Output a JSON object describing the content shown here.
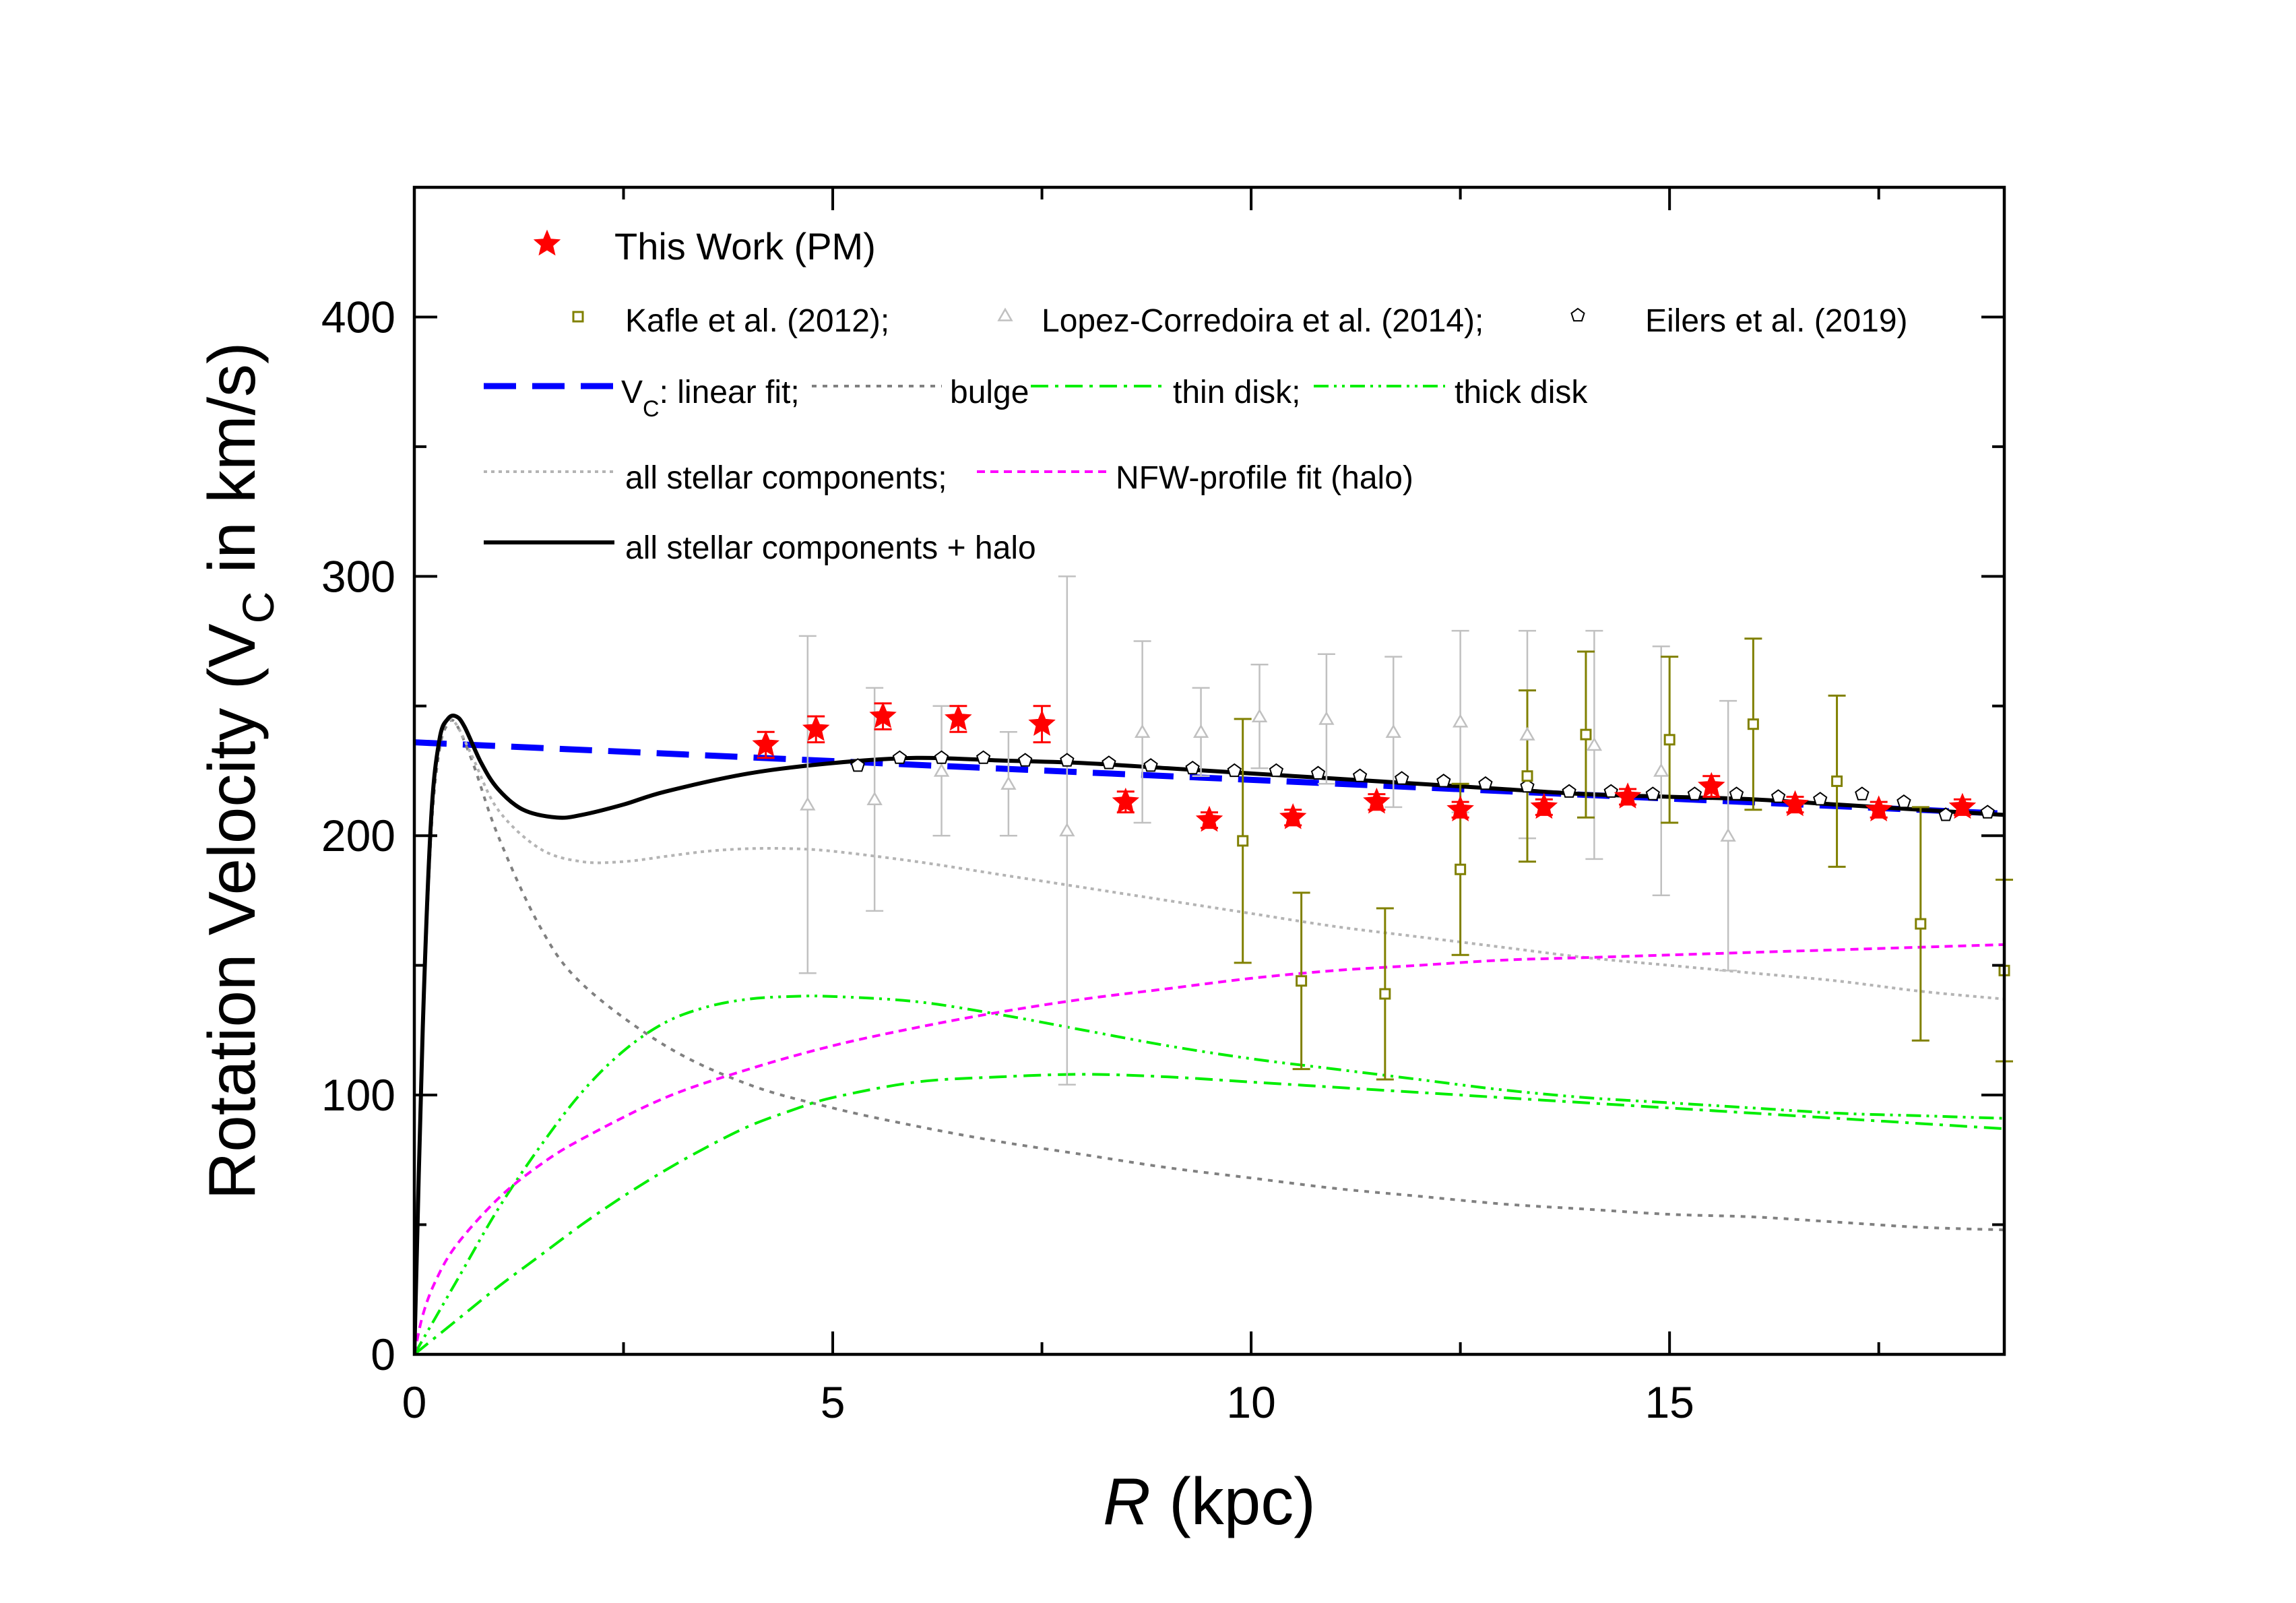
{
  "chart_data": {
    "type": "line",
    "title": "",
    "xlabel": {
      "italic": "R",
      "rest": " (kpc)"
    },
    "ylabel": {
      "pre": "Rotation Velocity (V",
      "sub": "C",
      "post": " in km/s)"
    },
    "xlim": [
      0,
      19
    ],
    "ylim": [
      0,
      450
    ],
    "xticks": [
      0,
      5,
      10,
      15
    ],
    "yticks": [
      0,
      100,
      200,
      300,
      400
    ],
    "xtick_labels": [
      "0",
      "5",
      "10",
      "15"
    ],
    "ytick_labels": [
      "0",
      "100",
      "200",
      "300",
      "400"
    ],
    "legend": {
      "placement": "top-left",
      "this_work": "This Work (PM)",
      "kafle": "Kafle et al. (2012);",
      "lopez": "Lopez-Corredoira et al. (2014);",
      "eilers": "Eilers et al. (2019)",
      "vc_pre": "V",
      "vc_sub": "C",
      "vc_post": ": linear fit;",
      "bulge": "bulge",
      "thin_disk": "thin disk;",
      "thick_disk": "thick disk",
      "all_stellar": "all stellar components;",
      "nfw": "NFW-profile fit (halo)",
      "all_plus_halo": "all stellar components + halo"
    },
    "colors": {
      "this_work": "#ff0000",
      "kafle": "#808000",
      "lopez": "#c0c0c0",
      "eilers": "#000000",
      "vc_fit": "#0000ff",
      "bulge": "#808080",
      "disk": "#00ee00",
      "all_stellar": "#b4b4b4",
      "nfw": "#ff00ff",
      "total": "#000000"
    },
    "series": [
      {
        "name": "This Work (PM)",
        "kind": "star",
        "points": [
          [
            4.2,
            235,
            5
          ],
          [
            4.8,
            241,
            5
          ],
          [
            5.6,
            246,
            5
          ],
          [
            6.5,
            245,
            5
          ],
          [
            7.5,
            243,
            7
          ],
          [
            8.5,
            213,
            4
          ],
          [
            9.5,
            206,
            3
          ],
          [
            10.5,
            207,
            3
          ],
          [
            11.5,
            213,
            3
          ],
          [
            12.5,
            210,
            3
          ],
          [
            13.5,
            211,
            3
          ],
          [
            14.5,
            215,
            3
          ],
          [
            15.5,
            219,
            4
          ],
          [
            16.5,
            212,
            3
          ],
          [
            17.5,
            210,
            3
          ],
          [
            18.5,
            211,
            3
          ]
        ]
      },
      {
        "name": "Kafle et al. (2012)",
        "kind": "square",
        "points": [
          [
            9.9,
            198,
            47
          ],
          [
            10.6,
            144,
            34
          ],
          [
            11.6,
            139,
            33
          ],
          [
            12.5,
            187,
            33
          ],
          [
            13.3,
            223,
            33
          ],
          [
            14.0,
            239,
            32
          ],
          [
            15.0,
            237,
            32
          ],
          [
            16.0,
            243,
            33
          ],
          [
            17.0,
            221,
            33
          ],
          [
            18.0,
            166,
            45
          ],
          [
            19.0,
            148,
            35
          ]
        ]
      },
      {
        "name": "Lopez-Corredoira et al. (2014)",
        "kind": "triangle",
        "points": [
          [
            4.7,
            212,
            65
          ],
          [
            5.5,
            214,
            43
          ],
          [
            6.3,
            225,
            25
          ],
          [
            7.1,
            220,
            20
          ],
          [
            7.8,
            202,
            98
          ],
          [
            8.7,
            240,
            35
          ],
          [
            9.4,
            240,
            17
          ],
          [
            10.1,
            246,
            20
          ],
          [
            10.9,
            245,
            25
          ],
          [
            11.7,
            240,
            29
          ],
          [
            12.5,
            244,
            35
          ],
          [
            13.3,
            239,
            40
          ],
          [
            14.1,
            235,
            44
          ],
          [
            14.9,
            225,
            48
          ],
          [
            15.7,
            200,
            52
          ]
        ]
      },
      {
        "name": "Eilers et al. (2019)",
        "kind": "pentagon",
        "points": [
          [
            5.3,
            227
          ],
          [
            5.8,
            230
          ],
          [
            6.3,
            230
          ],
          [
            6.8,
            230
          ],
          [
            7.3,
            229
          ],
          [
            7.8,
            229
          ],
          [
            8.3,
            228
          ],
          [
            8.8,
            227
          ],
          [
            9.3,
            226
          ],
          [
            9.8,
            225
          ],
          [
            10.3,
            225
          ],
          [
            10.8,
            224
          ],
          [
            11.3,
            223
          ],
          [
            11.8,
            222
          ],
          [
            12.3,
            221
          ],
          [
            12.8,
            220
          ],
          [
            13.3,
            219
          ],
          [
            13.8,
            217
          ],
          [
            14.3,
            217
          ],
          [
            14.8,
            216
          ],
          [
            15.3,
            216
          ],
          [
            15.8,
            216
          ],
          [
            16.3,
            215
          ],
          [
            16.8,
            214
          ],
          [
            17.3,
            216
          ],
          [
            17.8,
            213
          ],
          [
            18.3,
            208
          ],
          [
            18.8,
            209
          ]
        ]
      },
      {
        "name": "VC: linear fit",
        "kind": "line",
        "style": "dash-blue",
        "x": [
          0,
          19
        ],
        "y": [
          236,
          208.5
        ]
      },
      {
        "name": "bulge",
        "kind": "line",
        "style": "dot-gray",
        "x": [
          0,
          0.1,
          0.2,
          0.3,
          0.4,
          0.5,
          0.7,
          1,
          1.5,
          2,
          3,
          4,
          5,
          6,
          7,
          8,
          9,
          10,
          11,
          12,
          13,
          14,
          15,
          16,
          17,
          18,
          19
        ],
        "y": [
          0,
          120,
          200,
          233,
          243,
          243,
          228,
          200,
          165,
          143,
          119,
          104,
          95,
          88,
          82,
          77,
          72,
          68,
          64,
          61,
          58,
          56,
          54,
          53,
          51,
          49,
          48
        ]
      },
      {
        "name": "thin disk",
        "kind": "line",
        "style": "dashdot-green",
        "x": [
          0,
          0.5,
          1,
          1.5,
          2,
          2.5,
          3,
          3.5,
          4,
          4.5,
          5,
          6,
          7,
          8,
          9,
          10,
          11,
          12,
          13,
          14,
          15,
          16,
          17,
          18,
          19
        ],
        "y": [
          0,
          13,
          26,
          38,
          50,
          61,
          71,
          80,
          88,
          94,
          99,
          105,
          107,
          108,
          107,
          105,
          103,
          101,
          99,
          97,
          95,
          93,
          91,
          89,
          87
        ]
      },
      {
        "name": "thick disk",
        "kind": "line",
        "style": "dashdotdot-green",
        "x": [
          0,
          0.5,
          1,
          1.5,
          2,
          2.5,
          3,
          3.5,
          4,
          4.5,
          5,
          6,
          7,
          8,
          9,
          10,
          11,
          12,
          13,
          14,
          15,
          16,
          17,
          18,
          19
        ],
        "y": [
          0,
          28,
          56,
          80,
          101,
          117,
          128,
          134,
          137,
          138,
          138,
          136,
          131,
          125,
          119,
          114,
          110,
          106,
          102,
          99,
          97,
          95,
          93,
          92,
          91
        ]
      },
      {
        "name": "all stellar components",
        "kind": "line",
        "style": "dot-lightgray",
        "x": [
          0,
          0.1,
          0.2,
          0.3,
          0.4,
          0.5,
          0.7,
          1,
          1.5,
          2,
          2.5,
          3,
          3.5,
          4,
          4.5,
          5,
          6,
          7,
          8,
          9,
          10,
          11,
          12,
          13,
          14,
          15,
          16,
          17,
          18,
          19
        ],
        "y": [
          0,
          125,
          205,
          236,
          244,
          243,
          230,
          210,
          195,
          190,
          190,
          192,
          194,
          195,
          195,
          194,
          190,
          185,
          180,
          175,
          170,
          165,
          161,
          157,
          153,
          150,
          147,
          144,
          140,
          137
        ]
      },
      {
        "name": "NFW-profile fit (halo)",
        "kind": "line",
        "style": "shortdash-magenta",
        "x": [
          0,
          0.1,
          0.25,
          0.5,
          1,
          1.5,
          2,
          3,
          4,
          5,
          6,
          7,
          8,
          9,
          10,
          11,
          12,
          13,
          14,
          15,
          16,
          17,
          18,
          19
        ],
        "y": [
          0,
          15,
          28,
          42,
          60,
          73,
          83,
          99,
          110,
          119,
          126,
          132,
          137,
          141,
          145,
          148,
          150,
          152,
          153,
          154,
          155,
          156,
          157,
          158
        ]
      },
      {
        "name": "all stellar components + halo",
        "kind": "line",
        "style": "solid-black",
        "x": [
          0,
          0.1,
          0.2,
          0.3,
          0.4,
          0.5,
          0.6,
          0.8,
          1,
          1.3,
          1.7,
          2,
          2.5,
          3,
          4,
          5,
          6,
          7,
          8,
          9,
          10,
          11,
          12,
          13,
          14,
          15,
          16,
          17,
          18,
          19
        ],
        "y": [
          0,
          125,
          206,
          237,
          245,
          246,
          242,
          228,
          218,
          210,
          207,
          208,
          212,
          217,
          224,
          228,
          230,
          229,
          228,
          226,
          224,
          222,
          220,
          218,
          216,
          215,
          214,
          212,
          210,
          208
        ]
      }
    ]
  }
}
